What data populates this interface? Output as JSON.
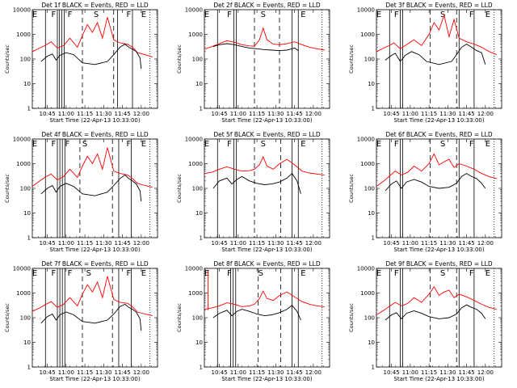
{
  "chart_data": [
    {
      "title": "Det 1f BLACK = Events, RED = LLD",
      "type": "line"
    },
    {
      "title": "Det 2f BLACK = Events, RED = LLD",
      "type": "line"
    },
    {
      "title": "Det 3f BLACK = Events, RED = LLD",
      "type": "line"
    },
    {
      "title": "Det 4f BLACK = Events, RED = LLD",
      "type": "line"
    },
    {
      "title": "Det 5f BLACK = Events, RED = LLD",
      "type": "line"
    },
    {
      "title": "Det 6f BLACK = Events, RED = LLD",
      "type": "line"
    },
    {
      "title": "Det 7f BLACK = Events, RED = LLD",
      "type": "line"
    },
    {
      "title": "Det 8f BLACK = Events, RED = LLD",
      "type": "line"
    },
    {
      "title": "Det 9f BLACK = Events, RED = LLD",
      "type": "line"
    }
  ],
  "shared": {
    "ylabel": "Counts/sec",
    "xlabel": "Start Time (22-Apr-13 10:33:00)",
    "yscale": "log",
    "ylim": [
      1,
      10000
    ],
    "yticks": [
      "1",
      "10",
      "100",
      "1000",
      "10000"
    ],
    "xticks": [
      "10:45",
      "11:00",
      "11:15",
      "11:30",
      "11:45",
      "12:00"
    ],
    "xlim_minutes_from_start": [
      0,
      100
    ],
    "series_colors": {
      "events": "#000000",
      "lld": "#ff0000"
    }
  },
  "panels": [
    {
      "letters": [
        [
          "E",
          2
        ],
        [
          "F",
          17
        ],
        [
          "F",
          30
        ],
        [
          "S",
          51
        ],
        [
          "F",
          77
        ],
        [
          "E",
          89
        ]
      ],
      "solid_lines": [
        10.5,
        20,
        21.5,
        23.5,
        25.5,
        68,
        80
      ],
      "dashed_lines": [
        40,
        65
      ],
      "dotted_lines": [
        94
      ],
      "black_x": [
        7,
        12,
        16,
        19,
        22,
        27,
        33,
        40,
        50,
        60,
        65,
        70,
        74,
        77,
        80,
        83,
        86,
        87
      ],
      "black_y": [
        80,
        130,
        160,
        90,
        140,
        180,
        150,
        70,
        60,
        80,
        150,
        300,
        400,
        300,
        250,
        200,
        110,
        40
      ],
      "red_x": [
        0,
        6,
        10,
        15,
        20,
        25,
        30,
        36,
        40,
        44,
        48,
        52,
        56,
        60,
        65,
        70,
        76,
        80,
        84,
        90,
        96
      ],
      "red_y": [
        200,
        280,
        350,
        500,
        280,
        350,
        700,
        300,
        900,
        2500,
        1200,
        3000,
        700,
        5000,
        600,
        450,
        400,
        300,
        180,
        150,
        120
      ]
    },
    {
      "letters": [
        [
          "E",
          2
        ],
        [
          "F",
          20
        ],
        [
          "S",
          47
        ],
        [
          "E",
          79
        ]
      ],
      "solid_lines": [
        10.5,
        23.5,
        25.5,
        70,
        75
      ],
      "dashed_lines": [
        40,
        60
      ],
      "dotted_lines": [
        94
      ],
      "black_x": [
        7,
        12,
        18,
        24,
        30,
        36,
        42,
        48,
        54,
        60,
        66,
        72,
        75
      ],
      "black_y": [
        320,
        380,
        420,
        380,
        320,
        280,
        260,
        240,
        230,
        220,
        230,
        280,
        220
      ],
      "red_x": [
        0,
        6,
        12,
        18,
        24,
        30,
        36,
        40,
        44,
        47,
        50,
        55,
        60,
        66,
        72,
        78,
        84,
        90,
        96
      ],
      "red_y": [
        250,
        320,
        420,
        550,
        480,
        380,
        340,
        330,
        600,
        1800,
        600,
        400,
        380,
        420,
        500,
        380,
        300,
        260,
        230
      ]
    },
    {
      "letters": [
        [
          "E",
          2
        ],
        [
          "F",
          16
        ],
        [
          "S",
          53
        ],
        [
          "F",
          76
        ],
        [
          "E",
          89
        ]
      ],
      "solid_lines": [
        10.5,
        19,
        21,
        66,
        78
      ],
      "dashed_lines": [
        43,
        64
      ],
      "dotted_lines": [
        94
      ],
      "black_x": [
        7,
        12,
        15,
        19,
        23,
        28,
        34,
        40,
        50,
        60,
        64,
        68,
        72,
        76,
        80,
        84,
        87
      ],
      "black_y": [
        90,
        140,
        170,
        80,
        140,
        200,
        150,
        80,
        60,
        80,
        150,
        300,
        400,
        300,
        220,
        180,
        60
      ],
      "red_x": [
        0,
        6,
        10,
        14,
        19,
        24,
        30,
        36,
        42,
        46,
        50,
        54,
        58,
        62,
        66,
        72,
        78,
        84,
        90,
        96
      ],
      "red_y": [
        200,
        280,
        350,
        450,
        260,
        380,
        600,
        350,
        1000,
        3000,
        1500,
        6000,
        800,
        4000,
        700,
        500,
        400,
        300,
        200,
        150
      ]
    },
    {
      "letters": [
        [
          "E",
          2
        ],
        [
          "F",
          17
        ],
        [
          "F",
          28
        ],
        [
          "S",
          42
        ],
        [
          "F",
          77
        ],
        [
          "E",
          89
        ]
      ],
      "solid_lines": [
        10.5,
        20,
        22,
        24,
        26,
        69,
        79
      ],
      "dashed_lines": [
        38,
        64
      ],
      "dotted_lines": [
        94
      ],
      "black_x": [
        7,
        12,
        16,
        19,
        22,
        27,
        33,
        40,
        50,
        60,
        65,
        70,
        74,
        77,
        80,
        83,
        86,
        87
      ],
      "black_y": [
        60,
        100,
        130,
        70,
        120,
        160,
        120,
        60,
        50,
        70,
        130,
        250,
        350,
        250,
        200,
        150,
        80,
        30
      ],
      "red_x": [
        0,
        6,
        10,
        15,
        20,
        25,
        30,
        36,
        40,
        44,
        48,
        52,
        56,
        60,
        65,
        70,
        76,
        80,
        84,
        90,
        96
      ],
      "red_y": [
        120,
        200,
        280,
        380,
        220,
        300,
        600,
        280,
        800,
        2000,
        1000,
        2500,
        600,
        4500,
        500,
        400,
        350,
        250,
        160,
        130,
        110
      ]
    },
    {
      "letters": [
        [
          "E",
          2
        ],
        [
          "F",
          20
        ],
        [
          "S",
          47
        ],
        [
          "E",
          79
        ]
      ],
      "solid_lines": [
        10.5,
        23.5,
        25.5,
        70,
        75
      ],
      "dashed_lines": [
        40,
        61
      ],
      "dotted_lines": [
        94
      ],
      "black_x": [
        7,
        12,
        18,
        22,
        26,
        30,
        36,
        42,
        48,
        54,
        60,
        66,
        70,
        74,
        77
      ],
      "black_y": [
        100,
        200,
        260,
        150,
        230,
        300,
        200,
        160,
        140,
        150,
        180,
        260,
        400,
        200,
        60
      ],
      "red_x": [
        0,
        6,
        12,
        18,
        24,
        30,
        36,
        40,
        44,
        47,
        50,
        55,
        60,
        66,
        72,
        78,
        84,
        90,
        96
      ],
      "red_y": [
        400,
        450,
        600,
        750,
        600,
        500,
        520,
        600,
        900,
        1900,
        800,
        600,
        1000,
        1500,
        900,
        500,
        420,
        380,
        350
      ]
    },
    {
      "letters": [
        [
          "E",
          2
        ],
        [
          "F",
          16
        ],
        [
          "S",
          53
        ],
        [
          "F",
          76
        ],
        [
          "E",
          89
        ]
      ],
      "solid_lines": [
        10.5,
        19,
        21,
        66,
        78
      ],
      "dashed_lines": [
        43,
        64
      ],
      "dotted_lines": [
        94
      ],
      "black_x": [
        7,
        12,
        16,
        20,
        24,
        30,
        36,
        42,
        50,
        58,
        64,
        68,
        72,
        76,
        80,
        84,
        87
      ],
      "black_y": [
        80,
        150,
        200,
        100,
        180,
        230,
        180,
        120,
        100,
        110,
        160,
        300,
        400,
        300,
        250,
        160,
        100
      ],
      "red_x": [
        0,
        6,
        10,
        15,
        20,
        25,
        30,
        36,
        42,
        46,
        50,
        54,
        58,
        62,
        66,
        72,
        78,
        84,
        90,
        96
      ],
      "red_y": [
        120,
        200,
        300,
        500,
        350,
        450,
        800,
        500,
        1000,
        2500,
        900,
        1200,
        1500,
        700,
        1000,
        800,
        600,
        400,
        300,
        250
      ]
    },
    {
      "letters": [
        [
          "E",
          2
        ],
        [
          "F",
          17
        ],
        [
          "F",
          30
        ],
        [
          "S",
          45
        ],
        [
          "F",
          77
        ],
        [
          "E",
          89
        ]
      ],
      "solid_lines": [
        10.5,
        20,
        22,
        24,
        26,
        69,
        79
      ],
      "dashed_lines": [
        40,
        64
      ],
      "dotted_lines": [
        94
      ],
      "black_x": [
        7,
        12,
        16,
        19,
        22,
        27,
        33,
        40,
        50,
        60,
        65,
        70,
        74,
        77,
        80,
        83,
        86,
        87
      ],
      "black_y": [
        60,
        110,
        140,
        80,
        130,
        170,
        130,
        70,
        60,
        80,
        140,
        280,
        350,
        260,
        220,
        170,
        90,
        30
      ],
      "red_x": [
        0,
        6,
        10,
        15,
        20,
        25,
        30,
        36,
        40,
        44,
        48,
        52,
        56,
        60,
        65,
        70,
        76,
        80,
        84,
        90,
        96
      ],
      "red_y": [
        180,
        250,
        330,
        450,
        260,
        350,
        650,
        300,
        900,
        2200,
        1100,
        2800,
        650,
        4800,
        550,
        420,
        380,
        280,
        170,
        140,
        120
      ]
    },
    {
      "letters": [
        [
          "E",
          2
        ],
        [
          "F",
          20
        ],
        [
          "S",
          45
        ],
        [
          "E",
          79
        ]
      ],
      "solid_lines": [
        10.5,
        21,
        23,
        25,
        70,
        75
      ],
      "dashed_lines": [
        43,
        61
      ],
      "dotted_lines": [
        94
      ],
      "spike": [
        3,
        8000
      ],
      "black_x": [
        7,
        12,
        18,
        22,
        26,
        30,
        36,
        42,
        48,
        54,
        60,
        66,
        70,
        74,
        77
      ],
      "black_y": [
        100,
        150,
        200,
        120,
        180,
        220,
        180,
        140,
        120,
        130,
        160,
        220,
        320,
        180,
        80
      ],
      "red_x": [
        0,
        6,
        12,
        18,
        24,
        30,
        36,
        40,
        44,
        47,
        50,
        55,
        60,
        66,
        72,
        78,
        84,
        90,
        96
      ],
      "red_y": [
        220,
        250,
        300,
        400,
        350,
        280,
        300,
        350,
        600,
        1200,
        600,
        500,
        800,
        1100,
        700,
        450,
        350,
        300,
        280
      ]
    },
    {
      "letters": [
        [
          "E",
          2
        ],
        [
          "F",
          16
        ],
        [
          "S",
          53
        ],
        [
          "F",
          76
        ],
        [
          "E",
          89
        ]
      ],
      "solid_lines": [
        10.5,
        19,
        21,
        66,
        78
      ],
      "dashed_lines": [
        43,
        64
      ],
      "dotted_lines": [
        94
      ],
      "black_x": [
        7,
        12,
        16,
        20,
        24,
        30,
        36,
        42,
        50,
        58,
        64,
        68,
        72,
        76,
        80,
        84,
        87
      ],
      "black_y": [
        80,
        130,
        160,
        90,
        150,
        190,
        150,
        110,
        90,
        100,
        140,
        250,
        330,
        260,
        220,
        150,
        90
      ],
      "red_x": [
        0,
        6,
        10,
        15,
        20,
        25,
        30,
        36,
        42,
        46,
        50,
        54,
        58,
        62,
        66,
        72,
        78,
        84,
        90,
        96
      ],
      "red_y": [
        130,
        200,
        280,
        420,
        300,
        380,
        650,
        420,
        900,
        1800,
        800,
        1100,
        1300,
        650,
        900,
        700,
        500,
        350,
        260,
        220
      ]
    }
  ]
}
